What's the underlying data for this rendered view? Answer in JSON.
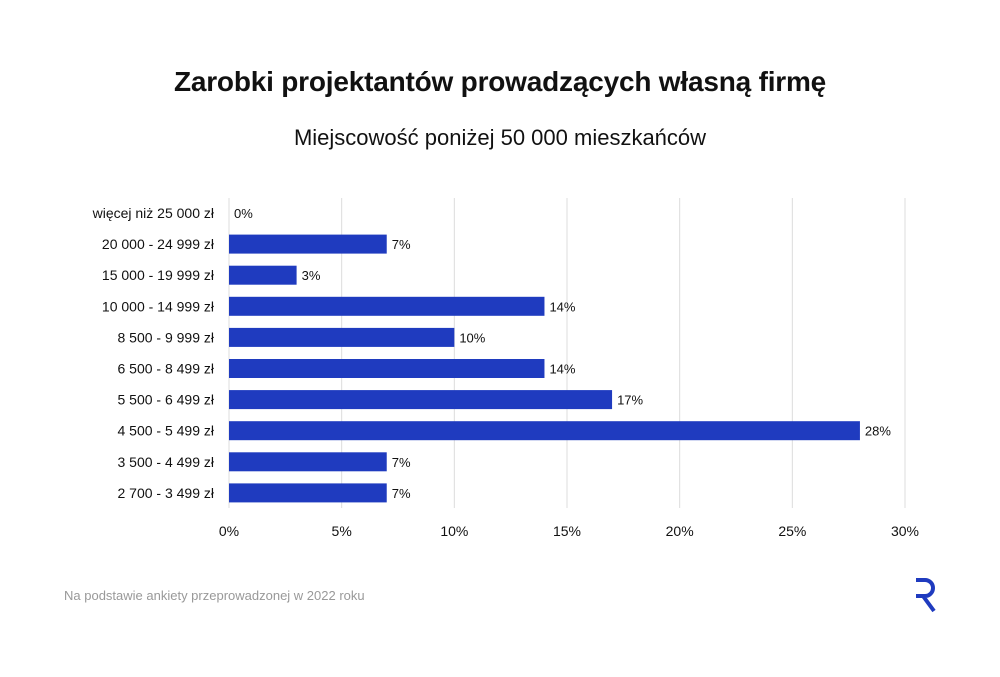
{
  "title": "Zarobki projektantów prowadzących własną firmę",
  "subtitle": "Miejscowość poniżej 50 000 mieszkańców",
  "footnote": "Na podstawie ankiety przeprowadzonej w 2022 roku",
  "logo_icon": "r-logo-icon",
  "colors": {
    "bar": "#1f3bbf",
    "grid": "#dcdcdc",
    "logo": "#1f3bbf",
    "text": "#111111",
    "footnote": "#999999"
  },
  "chart_data": {
    "type": "bar",
    "orientation": "horizontal",
    "categories": [
      "więcej niż 25 000 zł",
      "20 000 - 24 999 zł",
      "15 000 - 19 999 zł",
      "10 000 - 14 999 zł",
      "8 500 - 9 999 zł",
      "6 500 - 8 499 zł",
      "5 500 - 6 499 zł",
      "4 500 - 5 499 zł",
      "3 500 - 4 499 zł",
      "2 700 - 3 499 zł"
    ],
    "values": [
      0,
      7,
      3,
      14,
      10,
      14,
      17,
      28,
      7,
      7
    ],
    "data_labels": [
      "0%",
      "7%",
      "3%",
      "14%",
      "10%",
      "14%",
      "17%",
      "28%",
      "7%",
      "7%"
    ],
    "xlim": [
      0,
      30
    ],
    "xticks": [
      0,
      5,
      10,
      15,
      20,
      25,
      30
    ],
    "xtick_labels": [
      "0%",
      "5%",
      "10%",
      "15%",
      "20%",
      "25%",
      "30%"
    ],
    "grid": true,
    "legend": "none"
  }
}
